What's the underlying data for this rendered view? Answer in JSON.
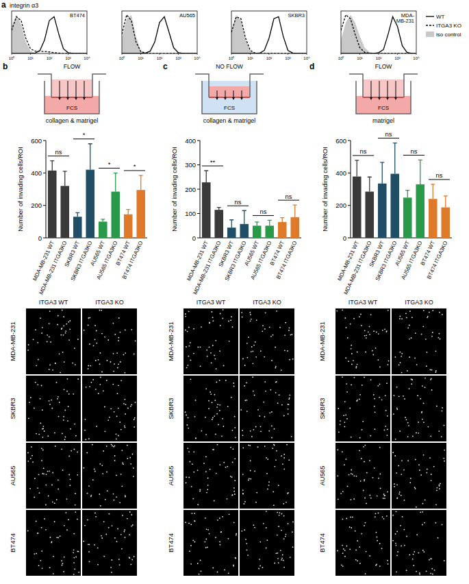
{
  "panel_a": {
    "label": "a",
    "title": "integrin α3",
    "legend_entries": [
      {
        "name": "WT",
        "line_style": "solid",
        "color": "#000000"
      },
      {
        "name": "ITGA3 KO",
        "line_style": "dashed",
        "color": "#000000"
      },
      {
        "name": "iso control",
        "type": "area",
        "color": "#c8c8c8"
      }
    ]
  },
  "chart_data": [
    {
      "type": "line",
      "title": [
        "BT474"
      ],
      "log": "x",
      "tick_labels": "x",
      "xlim": [
        1,
        10000
      ],
      "xticks": [
        {
          "value": 1,
          "label": "10⁰"
        },
        {
          "value": 10,
          "label": "10¹"
        },
        {
          "value": 100,
          "label": "10²"
        },
        {
          "value": 1000,
          "label": "10³"
        },
        {
          "value": 10000,
          "label": "10⁴"
        }
      ],
      "ylim": [
        0,
        110
      ],
      "x": [
        1,
        1.8,
        3.2,
        5.6,
        10,
        18,
        32,
        56,
        100,
        180,
        320,
        560,
        1000,
        1800,
        3200,
        5600,
        10000
      ],
      "series": [
        {
          "type": "area",
          "color": "#c8c8c8",
          "values": [
            70,
            100,
            75,
            30,
            6,
            1,
            0,
            0,
            0,
            0,
            0,
            0,
            0,
            0,
            0,
            0,
            0
          ]
        },
        {
          "type": "line",
          "line_style": "dashed",
          "color": "#000000",
          "values": [
            60,
            95,
            85,
            40,
            12,
            6,
            6,
            5,
            4,
            2,
            1,
            0,
            0,
            0,
            0,
            0,
            0
          ]
        },
        {
          "type": "line",
          "line_style": "solid",
          "color": "#000000",
          "values": [
            0,
            0,
            0,
            0,
            0,
            1,
            8,
            35,
            85,
            95,
            50,
            12,
            2,
            0,
            0,
            0,
            0
          ]
        }
      ]
    },
    {
      "type": "line",
      "title": [
        "AU565"
      ],
      "log": "x",
      "tick_labels": "x",
      "xlim": [
        1,
        10000
      ],
      "xticks": [
        {
          "value": 1,
          "label": "10⁰"
        },
        {
          "value": 10,
          "label": "10¹"
        },
        {
          "value": 100,
          "label": "10²"
        },
        {
          "value": 1000,
          "label": "10³"
        },
        {
          "value": 10000,
          "label": "10⁴"
        }
      ],
      "ylim": [
        0,
        110
      ],
      "x": [
        1,
        1.8,
        3.2,
        5.6,
        10,
        18,
        32,
        56,
        100,
        180,
        320,
        560,
        1000,
        1800,
        3200,
        5600,
        10000
      ],
      "series": [
        {
          "type": "area",
          "color": "#c8c8c8",
          "values": [
            40,
            90,
            100,
            45,
            8,
            1,
            0,
            0,
            0,
            0,
            0,
            0,
            0,
            0,
            0,
            0,
            0
          ]
        },
        {
          "type": "line",
          "line_style": "dashed",
          "color": "#000000",
          "values": [
            50,
            100,
            85,
            30,
            5,
            1,
            0,
            0,
            0,
            0,
            0,
            0,
            0,
            0,
            0,
            0,
            0
          ]
        },
        {
          "type": "line",
          "line_style": "solid",
          "color": "#000000",
          "values": [
            0,
            0,
            0,
            0,
            0,
            1,
            6,
            30,
            80,
            95,
            55,
            15,
            2,
            0,
            0,
            0,
            0
          ]
        }
      ]
    },
    {
      "type": "line",
      "title": [
        "SKBR3"
      ],
      "log": "x",
      "tick_labels": "x",
      "xlim": [
        1,
        10000
      ],
      "xticks": [
        {
          "value": 1,
          "label": "10⁰"
        },
        {
          "value": 10,
          "label": "10¹"
        },
        {
          "value": 100,
          "label": "10²"
        },
        {
          "value": 1000,
          "label": "10³"
        },
        {
          "value": 10000,
          "label": "10⁴"
        }
      ],
      "ylim": [
        0,
        110
      ],
      "x": [
        1,
        1.8,
        3.2,
        5.6,
        10,
        18,
        32,
        56,
        100,
        180,
        320,
        560,
        1000,
        1800,
        3200,
        5600,
        10000
      ],
      "series": [
        {
          "type": "area",
          "color": "#c8c8c8",
          "values": [
            60,
            100,
            85,
            35,
            6,
            1,
            0,
            0,
            0,
            0,
            0,
            0,
            0,
            0,
            0,
            0,
            0
          ]
        },
        {
          "type": "line",
          "line_style": "dashed",
          "color": "#000000",
          "values": [
            55,
            95,
            90,
            40,
            8,
            1,
            0,
            0,
            0,
            0,
            0,
            0,
            0,
            0,
            0,
            0,
            0
          ]
        },
        {
          "type": "line",
          "line_style": "solid",
          "color": "#000000",
          "values": [
            0,
            0,
            0,
            0,
            0,
            0,
            1,
            8,
            40,
            90,
            95,
            45,
            8,
            1,
            0,
            0,
            0
          ]
        }
      ]
    },
    {
      "type": "line",
      "title": [
        "MDA-",
        "MB-231"
      ],
      "log": "x",
      "tick_labels": "x",
      "xlim": [
        1,
        10000
      ],
      "xticks": [
        {
          "value": 1,
          "label": "10⁰"
        },
        {
          "value": 10,
          "label": "10¹"
        },
        {
          "value": 100,
          "label": "10²"
        },
        {
          "value": 1000,
          "label": "10³"
        },
        {
          "value": 10000,
          "label": "10⁴"
        }
      ],
      "ylim": [
        0,
        110
      ],
      "x": [
        1,
        1.8,
        3.2,
        5.6,
        10,
        18,
        32,
        56,
        100,
        180,
        320,
        560,
        1000,
        1800,
        3200,
        5600,
        10000
      ],
      "series": [
        {
          "type": "area",
          "color": "#c8c8c8",
          "values": [
            35,
            80,
            100,
            80,
            45,
            15,
            4,
            1,
            0,
            0,
            0,
            0,
            0,
            0,
            0,
            0,
            0
          ]
        },
        {
          "type": "line",
          "line_style": "dashed",
          "color": "#000000",
          "values": [
            60,
            100,
            90,
            50,
            15,
            3,
            1,
            0,
            0,
            0,
            0,
            0,
            0,
            0,
            0,
            0,
            0
          ]
        },
        {
          "type": "line",
          "line_style": "solid",
          "color": "#000000",
          "values": [
            0,
            0,
            0,
            0,
            0,
            0,
            0,
            0,
            2,
            10,
            50,
            95,
            70,
            20,
            3,
            0,
            0
          ]
        }
      ]
    },
    {
      "type": "bar",
      "ylabel": "Number of invading cells/ROI",
      "categories": [
        "MDA-MB-231 WT",
        "MDA-MB-231 ITGA3KO",
        "SKBR3 WT",
        "SKBR3 ITGA3KO",
        "AU565 WT",
        "AU565 ITGA3KO",
        "BT474 WT",
        "BT474 ITGA3KO"
      ],
      "values": [
        415,
        320,
        130,
        420,
        100,
        285,
        145,
        295
      ],
      "errors": [
        60,
        90,
        25,
        160,
        15,
        115,
        30,
        90
      ],
      "colors": [
        "#3a3a3a",
        "#3a3a3a",
        "#1f4e66",
        "#1f4e66",
        "#2a9a4a",
        "#2a9a4a",
        "#e07a2b",
        "#e07a2b"
      ],
      "ylim": [
        0,
        600
      ],
      "yticks": [
        0,
        200,
        400,
        600
      ],
      "comparisons": [
        {
          "categories": [
            "MDA-MB-231 WT",
            "MDA-MB-231 ITGA3KO"
          ],
          "label": "ns"
        },
        {
          "categories": [
            "SKBR3 WT",
            "SKBR3 ITGA3KO"
          ],
          "label": "*"
        },
        {
          "categories": [
            "AU565 WT",
            "AU565 ITGA3KO"
          ],
          "label": "*"
        },
        {
          "categories": [
            "BT474 WT",
            "BT474 ITGA3KO"
          ],
          "label": "*"
        }
      ]
    },
    {
      "type": "bar",
      "ylabel": "Number of invading cells/ROI",
      "categories": [
        "MDA-MB-231 WT",
        "MDA-MB-231 ITGA3KO",
        "SKBR3 WT",
        "SKBR3 ITGA3KO",
        "AU565 WT",
        "AU565 ITGA3KO",
        "BT474 WT",
        "BT474 ITGA3KO"
      ],
      "values": [
        228,
        115,
        42,
        57,
        50,
        50,
        65,
        85
      ],
      "errors": [
        48,
        10,
        32,
        55,
        15,
        22,
        18,
        50
      ],
      "colors": [
        "#3a3a3a",
        "#3a3a3a",
        "#1f4e66",
        "#1f4e66",
        "#2a9a4a",
        "#2a9a4a",
        "#e07a2b",
        "#e07a2b"
      ],
      "ylim": [
        0,
        400
      ],
      "yticks": [
        0,
        100,
        200,
        300,
        400
      ],
      "comparisons": [
        {
          "categories": [
            "MDA-MB-231 WT",
            "MDA-MB-231 ITGA3KO"
          ],
          "label": "**"
        },
        {
          "categories": [
            "SKBR3 WT",
            "SKBR3 ITGA3KO"
          ],
          "label": "ns"
        },
        {
          "categories": [
            "AU565 WT",
            "AU565 ITGA3KO"
          ],
          "label": "ns"
        },
        {
          "categories": [
            "BT474 WT",
            "BT474 ITGA3KO"
          ],
          "label": "ns"
        }
      ]
    },
    {
      "type": "bar",
      "ylabel": "Number of invading cells/ROI",
      "categories": [
        "MDA-MB-231 WT",
        "MDA-MB-231 ITGA3KO",
        "SKBR3 WT",
        "SKBR3 ITGA3KO",
        "AU565 WT",
        "AU565 ITGA3KO",
        "BT474 WT",
        "BT474 ITGA3KO"
      ],
      "values": [
        378,
        285,
        335,
        395,
        248,
        330,
        240,
        188
      ],
      "errors": [
        100,
        90,
        130,
        190,
        45,
        150,
        90,
        70
      ],
      "colors": [
        "#3a3a3a",
        "#3a3a3a",
        "#1f4e66",
        "#1f4e66",
        "#2a9a4a",
        "#2a9a4a",
        "#e07a2b",
        "#e07a2b"
      ],
      "ylim": [
        0,
        600
      ],
      "yticks": [
        0,
        200,
        400,
        600
      ],
      "comparisons": [
        {
          "categories": [
            "MDA-MB-231 WT",
            "MDA-MB-231 ITGA3KO"
          ],
          "label": "ns"
        },
        {
          "categories": [
            "SKBR3 WT",
            "SKBR3 ITGA3KO"
          ],
          "label": "ns"
        },
        {
          "categories": [
            "AU565 WT",
            "AU565 ITGA3KO"
          ],
          "label": "ns"
        },
        {
          "categories": [
            "BT474 WT",
            "BT474 ITGA3KO"
          ],
          "label": "ns"
        }
      ]
    }
  ],
  "schematics": [
    {
      "panel": "b",
      "condition": "FLOW",
      "flow": true,
      "medium": "FCS",
      "coating": "collagen & matrigel"
    },
    {
      "panel": "c",
      "condition": "NO FLOW",
      "flow": false,
      "medium": "FCS",
      "coating": "collagen & matrigel"
    },
    {
      "panel": "d",
      "condition": "FLOW",
      "flow": true,
      "medium": "FCS",
      "coating": "matrigel"
    }
  ],
  "image_grids": [
    {
      "columns": [
        "ITGA3 WT",
        "ITGA3 KO"
      ],
      "rows": [
        "MDA-MB-231",
        "SKBR3",
        "AU565",
        "BT474"
      ]
    },
    {
      "columns": [
        "ITGA3 WT",
        "ITGA3 KO"
      ],
      "rows": [
        "MDA-MB-231",
        "SKBR3",
        "AU565",
        "BT474"
      ]
    },
    {
      "columns": [
        "ITGA3 WT",
        "ITGA3 KO"
      ],
      "rows": [
        "MDA-MB-231",
        "SKBR3",
        "AU565",
        "BT474"
      ]
    }
  ]
}
